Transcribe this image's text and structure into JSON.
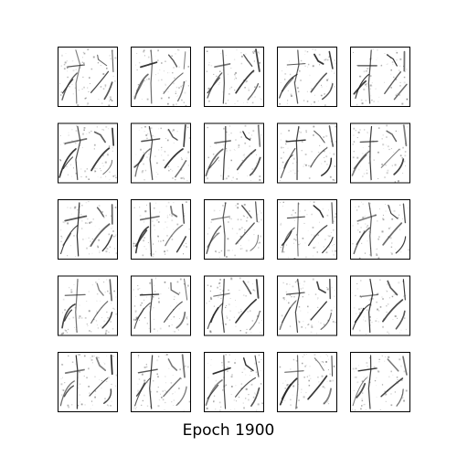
{
  "figure": {
    "caption": "Epoch 1900",
    "grid": {
      "rows": 5,
      "cols": 5
    },
    "colors": {
      "background": "#ffffff",
      "frame": "#000000",
      "ink": "#222222"
    }
  }
}
